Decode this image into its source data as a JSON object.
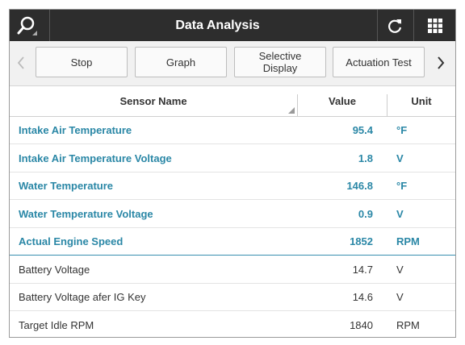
{
  "header": {
    "title": "Data Analysis"
  },
  "toolbar": {
    "buttons": [
      "Stop",
      "Graph",
      "Selective\nDisplay",
      "Actuation Test"
    ]
  },
  "table": {
    "columns": [
      "Sensor Name",
      "Value",
      "Unit"
    ],
    "rows": [
      {
        "name": "Intake Air Temperature",
        "value": "95.4",
        "unit": "°F",
        "highlighted": true
      },
      {
        "name": "Intake Air Temperature Voltage",
        "value": "1.8",
        "unit": "V",
        "highlighted": true
      },
      {
        "name": "Water Temperature",
        "value": "146.8",
        "unit": "°F",
        "highlighted": true
      },
      {
        "name": "Water Temperature Voltage",
        "value": "0.9",
        "unit": "V",
        "highlighted": true
      },
      {
        "name": "Actual Engine Speed",
        "value": "1852",
        "unit": "RPM",
        "highlighted": true
      },
      {
        "name": "Battery Voltage",
        "value": "14.7",
        "unit": "V",
        "highlighted": false
      },
      {
        "name": "Battery Voltage afer IG Key",
        "value": "14.6",
        "unit": "V",
        "highlighted": false
      },
      {
        "name": "Target Idle RPM",
        "value": "1840",
        "unit": "RPM",
        "highlighted": false
      }
    ]
  }
}
